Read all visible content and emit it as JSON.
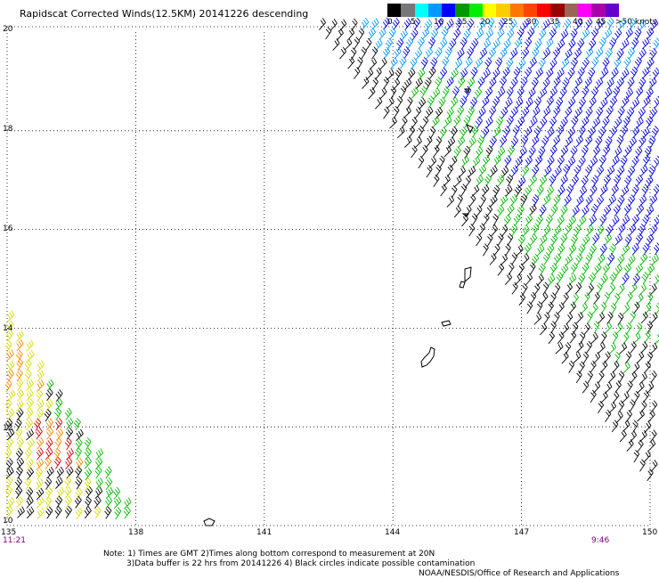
{
  "title": "Rapidscat Corrected Winds(12.5KM) 20141226 descending",
  "colorbar": {
    "unit_label": ">50 knots",
    "tick_labels": [
      "0",
      "5",
      "10",
      "15",
      "20",
      "25",
      "30",
      "35",
      "40",
      "45"
    ],
    "colors": [
      "#000000",
      "#777777",
      "#00ffff",
      "#0099ff",
      "#0000ff",
      "#009900",
      "#00ee00",
      "#ffff00",
      "#ffcc00",
      "#ff7700",
      "#ff4400",
      "#ff0000",
      "#990000",
      "#996655",
      "#ff00ff",
      "#aa00aa",
      "#6600cc"
    ]
  },
  "axes": {
    "lat_labels": [
      "20",
      "18",
      "16",
      "14",
      "12",
      "10"
    ],
    "lon_labels": [
      "135",
      "138",
      "141",
      "144",
      "147",
      "150"
    ]
  },
  "times": {
    "left": "11:21",
    "right": "9:46"
  },
  "notes": [
    "Note: 1) Times are GMT 2)Times along bottom correspond to measurement at 20N",
    "3)Data buffer is 22 hrs from 20141226 4) Black circles indicate possible contamination",
    "NOAA/NESDIS/Office of Research and Applications"
  ],
  "wind_colors": {
    "calm": "#000000",
    "light": "#00bb00",
    "moderate": "#0000dd",
    "fresh": "#0099ff",
    "strong": "#dddd00",
    "gale": "#ff8800",
    "storm": "#cc0000"
  }
}
